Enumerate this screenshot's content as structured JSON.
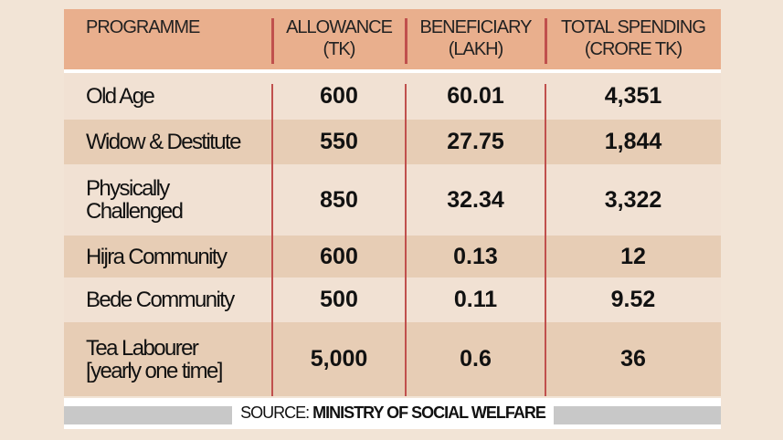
{
  "table": {
    "headers": [
      {
        "line1": "PROGRAMME",
        "line2": ""
      },
      {
        "line1": "ALLOWANCE",
        "line2": "(TK)"
      },
      {
        "line1": "BENEFICIARY",
        "line2": "(LAKH)"
      },
      {
        "line1": "TOTAL SPENDING",
        "line2": "(CRORE TK)"
      }
    ],
    "rows": [
      {
        "programme": [
          "Old Age"
        ],
        "allowance": "600",
        "beneficiary": "60.01",
        "spending": "4,351"
      },
      {
        "programme": [
          "Widow & Destitute"
        ],
        "allowance": "550",
        "beneficiary": "27.75",
        "spending": "1,844"
      },
      {
        "programme": [
          "Physically",
          "Challenged"
        ],
        "allowance": "850",
        "beneficiary": "32.34",
        "spending": "3,322"
      },
      {
        "programme": [
          "Hijra Community"
        ],
        "allowance": "600",
        "beneficiary": "0.13",
        "spending": "12"
      },
      {
        "programme": [
          "Bede Community"
        ],
        "allowance": "500",
        "beneficiary": "0.11",
        "spending": "9.52"
      },
      {
        "programme": [
          "Tea Labourer",
          "[yearly one time]"
        ],
        "allowance": "5,000",
        "beneficiary": "0.6",
        "spending": "36"
      }
    ]
  },
  "source": {
    "label": "SOURCE:",
    "value": "MINISTRY OF SOCIAL WELFARE"
  },
  "colors": {
    "header": "#e9af8d",
    "divider": "#c0504d",
    "row_light": "#f1e1d3",
    "row_dark": "#e7cdb5"
  }
}
